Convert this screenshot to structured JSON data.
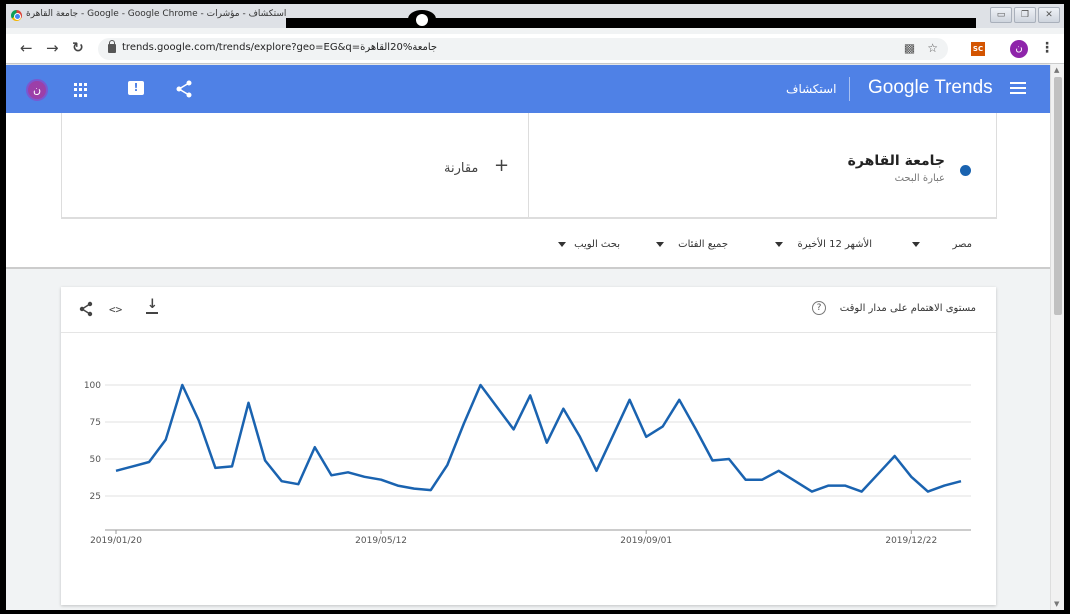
{
  "browser": {
    "window_title": "جامعة القاهرة - Google - Google Chrome - استكشاف - مؤشرات",
    "url": "trends.google.com/trends/explore?geo=EG&q=جامعة%20القاهرة",
    "window_buttons": [
      "▭",
      "❐",
      "✕"
    ],
    "profile_initial": "ن",
    "extension_label": "SC"
  },
  "header": {
    "logo": "Google Trends",
    "section": "استكشاف",
    "avatar_initial": "ن",
    "feedback_glyph": "!"
  },
  "search": {
    "term": "جامعة القاهرة",
    "term_type": "عبارة البحث",
    "compare_label": "مقارنة",
    "term_color": "#1a63b0"
  },
  "filters": {
    "region": "مصر",
    "period": "الأشهر 12 الأخيرة",
    "category": "جميع الفئات",
    "property": "بحث الويب"
  },
  "card": {
    "title": "مستوى الاهتمام على مدار الوقت",
    "help_glyph": "?"
  },
  "chart_data": {
    "type": "line",
    "yticks": [
      25,
      50,
      75,
      100
    ],
    "ylim": [
      0,
      100
    ],
    "x_labels": [
      "2019/01/20",
      "2019/05/12",
      "2019/09/01",
      "2019/12/22"
    ],
    "x_label_indices": [
      0,
      16,
      32,
      48
    ],
    "series": [
      {
        "color": "#1a63b0",
        "values": [
          42,
          45,
          48,
          63,
          100,
          76,
          44,
          45,
          88,
          49,
          35,
          33,
          58,
          39,
          41,
          38,
          36,
          32,
          30,
          29,
          46,
          74,
          100,
          85,
          70,
          93,
          61,
          84,
          65,
          42,
          66,
          90,
          65,
          72,
          90,
          70,
          49,
          50,
          36,
          36,
          42,
          35,
          28,
          32,
          32,
          28,
          40,
          52,
          38,
          28,
          32,
          35
        ]
      }
    ]
  }
}
